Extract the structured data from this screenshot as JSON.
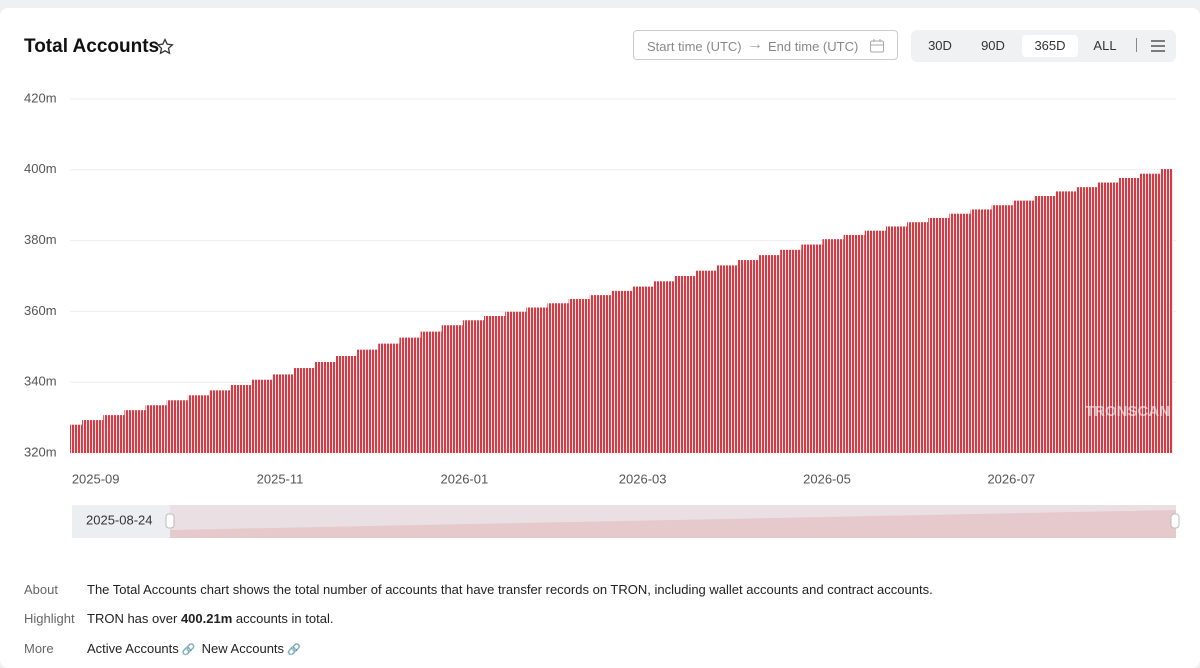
{
  "chart_data": {
    "type": "bar",
    "title": "Total Accounts",
    "x": [
      "2025-08-24",
      "2025-08-31",
      "2025-09-07",
      "2025-09-14",
      "2025-09-21",
      "2025-09-28",
      "2025-10-05",
      "2025-10-12",
      "2025-10-19",
      "2025-10-26",
      "2025-11-02",
      "2025-11-09",
      "2025-11-16",
      "2025-11-23",
      "2025-11-30",
      "2025-12-07",
      "2025-12-14",
      "2025-12-21",
      "2025-12-28",
      "2026-01-04",
      "2026-01-11",
      "2026-01-18",
      "2026-01-25",
      "2026-02-01",
      "2026-02-08",
      "2026-02-15",
      "2026-02-22",
      "2026-03-01",
      "2026-03-08",
      "2026-03-15",
      "2026-03-22",
      "2026-03-29",
      "2026-04-05",
      "2026-04-12",
      "2026-04-19",
      "2026-04-26",
      "2026-05-03",
      "2026-05-10",
      "2026-05-17",
      "2026-05-24",
      "2026-05-31",
      "2026-06-07",
      "2026-06-14",
      "2026-06-21",
      "2026-06-28",
      "2026-07-05",
      "2026-07-12",
      "2026-07-19",
      "2026-07-26",
      "2026-08-02",
      "2026-08-09",
      "2026-08-16",
      "2026-08-23"
    ],
    "values": [
      328.0,
      329.3,
      330.7,
      332.1,
      333.5,
      334.9,
      336.3,
      337.7,
      339.2,
      340.7,
      342.2,
      344.0,
      345.7,
      347.4,
      349.2,
      350.9,
      352.6,
      354.3,
      356.1,
      357.5,
      358.7,
      359.9,
      361.1,
      362.3,
      363.5,
      364.6,
      365.8,
      367.0,
      368.5,
      370.0,
      371.5,
      373.0,
      374.5,
      375.9,
      377.4,
      378.9,
      380.4,
      381.6,
      382.8,
      384.0,
      385.2,
      386.4,
      387.6,
      388.8,
      390.0,
      391.3,
      392.6,
      393.9,
      395.1,
      396.4,
      397.7,
      398.9,
      400.21
    ],
    "color": "#d63b45",
    "xlim": [
      "2025-08-24",
      "2026-08-23"
    ],
    "xticks": [
      {
        "value": "2025-09-01",
        "label": "2025-09"
      },
      {
        "value": "2025-11-01",
        "label": "2025-11"
      },
      {
        "value": "2026-01-01",
        "label": "2026-01"
      },
      {
        "value": "2026-03-01",
        "label": "2026-03"
      },
      {
        "value": "2026-05-01",
        "label": "2026-05"
      },
      {
        "value": "2026-07-01",
        "label": "2026-07"
      }
    ],
    "ylim": [
      320,
      420
    ],
    "yticks": [
      {
        "value": 320,
        "label": "320m"
      },
      {
        "value": 340,
        "label": "340m"
      },
      {
        "value": 360,
        "label": "360m"
      },
      {
        "value": 380,
        "label": "380m"
      },
      {
        "value": 400,
        "label": "400m"
      },
      {
        "value": 420,
        "label": "420m"
      }
    ],
    "grid": true,
    "watermark": "TRONSCAN"
  },
  "header": {
    "start_time": "Start time (UTC)",
    "end_time": "End time (UTC)",
    "ranges": [
      "30D",
      "90D",
      "365D",
      "ALL"
    ]
  },
  "footer": {
    "about_label": "About",
    "about_text": "The Total Accounts chart shows the total number of accounts that have transfer records on TRON, including wallet accounts and contract accounts.",
    "highlight_label": "Highlight",
    "highlight_before": "TRON has over",
    "highlight_value": "400.21m",
    "highlight_after": "accounts in total.",
    "more_label": "More",
    "links": [
      "Active Accounts",
      "New Accounts"
    ]
  }
}
